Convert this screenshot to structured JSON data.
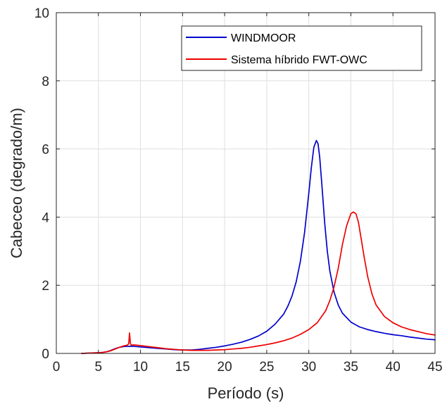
{
  "chart_data": {
    "type": "line",
    "xlabel": "Período (s)",
    "ylabel": "Cabeceo (degrado/m)",
    "xlim": [
      0,
      45
    ],
    "ylim": [
      0,
      10
    ],
    "xticks": [
      0,
      5,
      10,
      15,
      20,
      25,
      30,
      35,
      40,
      45
    ],
    "yticks": [
      0,
      2,
      4,
      6,
      8,
      10
    ],
    "grid": true,
    "legend_position": "top-right",
    "series": [
      {
        "name": "WINDMOOR",
        "color": "#0000cc",
        "x": [
          3,
          4,
          5,
          5.5,
          6,
          6.5,
          7,
          7.5,
          8,
          8.5,
          9,
          9.5,
          10,
          11,
          12,
          13,
          14,
          15,
          16,
          17,
          18,
          19,
          20,
          21,
          22,
          23,
          24,
          25,
          26,
          27,
          27.5,
          28,
          28.5,
          29,
          29.5,
          30,
          30.3,
          30.6,
          30.9,
          31.1,
          31.3,
          31.6,
          31.9,
          32.2,
          32.5,
          33,
          33.5,
          34,
          35,
          36,
          37,
          38,
          39,
          40,
          41,
          42,
          43,
          44,
          45
        ],
        "y": [
          0,
          0.01,
          0.02,
          0.03,
          0.05,
          0.09,
          0.14,
          0.18,
          0.2,
          0.21,
          0.21,
          0.2,
          0.19,
          0.17,
          0.15,
          0.13,
          0.11,
          0.1,
          0.1,
          0.12,
          0.15,
          0.18,
          0.22,
          0.27,
          0.33,
          0.41,
          0.51,
          0.65,
          0.86,
          1.15,
          1.38,
          1.68,
          2.1,
          2.7,
          3.55,
          4.7,
          5.45,
          6.05,
          6.25,
          6.15,
          5.75,
          4.8,
          3.8,
          3.0,
          2.42,
          1.8,
          1.42,
          1.18,
          0.92,
          0.78,
          0.7,
          0.64,
          0.59,
          0.55,
          0.52,
          0.48,
          0.45,
          0.42,
          0.4
        ]
      },
      {
        "name": "Sistema híbrido FWT-OWC",
        "color": "#ee0000",
        "x": [
          3,
          4,
          5,
          5.5,
          6,
          6.5,
          7,
          7.5,
          8,
          8.4,
          8.6,
          8.7,
          8.8,
          8.9,
          9.2,
          9.6,
          10,
          11,
          12,
          13,
          14,
          15,
          16,
          17,
          18,
          19,
          20,
          21,
          22,
          23,
          24,
          25,
          26,
          27,
          28,
          29,
          30,
          31,
          32,
          32.5,
          33,
          33.5,
          34,
          34.5,
          35,
          35.3,
          35.6,
          35.9,
          36.2,
          36.6,
          37,
          37.5,
          38,
          39,
          40,
          41,
          42,
          43,
          44,
          45
        ],
        "y": [
          0,
          0.01,
          0.02,
          0.03,
          0.05,
          0.08,
          0.13,
          0.18,
          0.22,
          0.24,
          0.28,
          0.6,
          0.3,
          0.24,
          0.25,
          0.24,
          0.23,
          0.2,
          0.17,
          0.14,
          0.12,
          0.1,
          0.09,
          0.09,
          0.09,
          0.1,
          0.11,
          0.13,
          0.15,
          0.18,
          0.22,
          0.26,
          0.31,
          0.37,
          0.45,
          0.56,
          0.7,
          0.9,
          1.25,
          1.55,
          1.95,
          2.5,
          3.2,
          3.75,
          4.1,
          4.15,
          4.1,
          3.85,
          3.4,
          2.8,
          2.25,
          1.75,
          1.42,
          1.08,
          0.9,
          0.78,
          0.7,
          0.64,
          0.58,
          0.54
        ]
      }
    ]
  }
}
